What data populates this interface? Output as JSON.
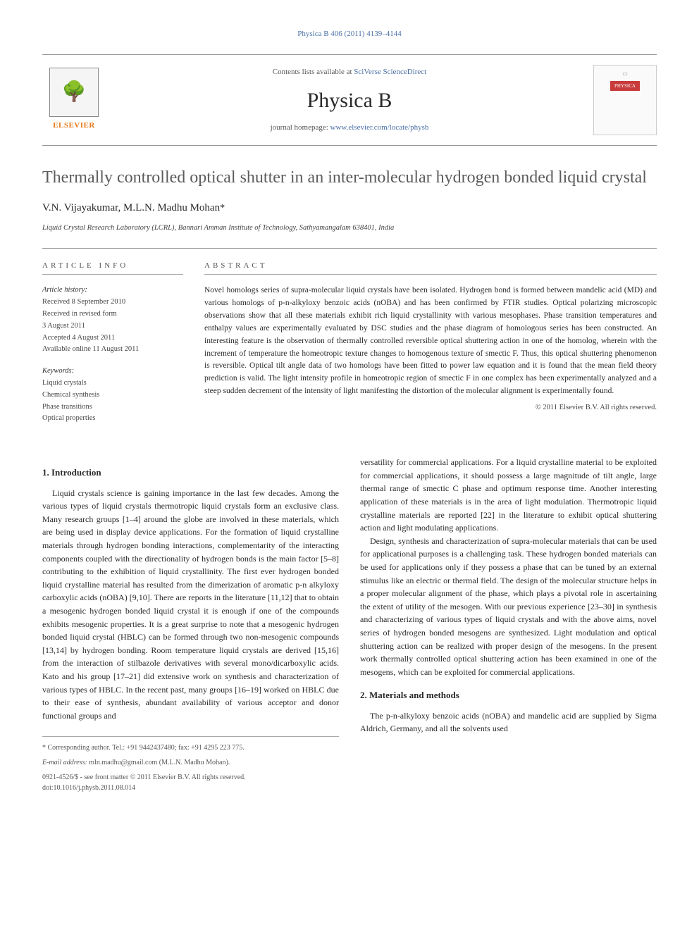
{
  "journal_ref": "Physica B 406 (2011) 4139–4144",
  "header": {
    "contents_prefix": "Contents lists available at ",
    "contents_link": "SciVerse ScienceDirect",
    "journal_name": "Physica B",
    "homepage_prefix": "journal homepage: ",
    "homepage_url": "www.elsevier.com/locate/physb",
    "elsevier_label": "ELSEVIER",
    "cover_badge": "PHYSICA"
  },
  "title": "Thermally controlled optical shutter in an inter-molecular hydrogen bonded liquid crystal",
  "authors": "V.N. Vijayakumar, M.L.N. Madhu Mohan",
  "author_mark": "*",
  "affiliation": "Liquid Crystal Research Laboratory (LCRL), Bannari Amman Institute of Technology, Sathyamangalam 638401, India",
  "article_info": {
    "heading": "ARTICLE INFO",
    "history_label": "Article history:",
    "history": [
      "Received 8 September 2010",
      "Received in revised form",
      "3 August 2011",
      "Accepted 4 August 2011",
      "Available online 11 August 2011"
    ],
    "keywords_label": "Keywords:",
    "keywords": [
      "Liquid crystals",
      "Chemical synthesis",
      "Phase transitions",
      "Optical properties"
    ]
  },
  "abstract": {
    "heading": "ABSTRACT",
    "text": "Novel homologs series of supra-molecular liquid crystals have been isolated. Hydrogen bond is formed between mandelic acid (MD) and various homologs of p-n-alkyloxy benzoic acids (nOBA) and has been confirmed by FTIR studies. Optical polarizing microscopic observations show that all these materials exhibit rich liquid crystallinity with various mesophases. Phase transition temperatures and enthalpy values are experimentally evaluated by DSC studies and the phase diagram of homologous series has been constructed. An interesting feature is the observation of thermally controlled reversible optical shuttering action in one of the homolog, wherein with the increment of temperature the homeotropic texture changes to homogenous texture of smectic F. Thus, this optical shuttering phenomenon is reversible. Optical tilt angle data of two homologs have been fitted to power law equation and it is found that the mean field theory prediction is valid. The light intensity profile in homeotropic region of smectic F in one complex has been experimentally analyzed and a steep sudden decrement of the intensity of light manifesting the distortion of the molecular alignment is experimentally found.",
    "copyright": "© 2011 Elsevier B.V. All rights reserved."
  },
  "sections": {
    "intro_heading": "1. Introduction",
    "intro_p1": "Liquid crystals science is gaining importance in the last few decades. Among the various types of liquid crystals thermotropic liquid crystals form an exclusive class. Many research groups [1–4] around the globe are involved in these materials, which are being used in display device applications. For the formation of liquid crystalline materials through hydrogen bonding interactions, complementarity of the interacting components coupled with the directionality of hydrogen bonds is the main factor [5–8] contributing to the exhibition of liquid crystallinity. The first ever hydrogen bonded liquid crystalline material has resulted from the dimerization of aromatic p-n alkyloxy carboxylic acids (nOBA) [9,10]. There are reports in the literature [11,12] that to obtain a mesogenic hydrogen bonded liquid crystal it is enough if one of the compounds exhibits mesogenic properties. It is a great surprise to note that a mesogenic hydrogen bonded liquid crystal (HBLC) can be formed through two non-mesogenic compounds [13,14] by hydrogen bonding. Room temperature liquid crystals are derived [15,16] from the interaction of stilbazole derivatives with several mono/dicarboxylic acids. Kato and his group [17–21] did extensive work on synthesis and characterization of various types of HBLC. In the recent past, many groups [16–19] worked on HBLC due to their ease of synthesis, abundant availability of various acceptor and donor functional groups and",
    "intro_p2": "versatility for commercial applications. For a liquid crystalline material to be exploited for commercial applications, it should possess a large magnitude of tilt angle, large thermal range of smectic C phase and optimum response time. Another interesting application of these materials is in the area of light modulation. Thermotropic liquid crystalline materials are reported [22] in the literature to exhibit optical shuttering action and light modulating applications.",
    "intro_p3": "Design, synthesis and characterization of supra-molecular materials that can be used for applicational purposes is a challenging task. These hydrogen bonded materials can be used for applications only if they possess a phase that can be tuned by an external stimulus like an electric or thermal field. The design of the molecular structure helps in a proper molecular alignment of the phase, which plays a pivotal role in ascertaining the extent of utility of the mesogen. With our previous experience [23–30] in synthesis and characterizing of various types of liquid crystals and with the above aims, novel series of hydrogen bonded mesogens are synthesized. Light modulation and optical shuttering action can be realized with proper design of the mesogens. In the present work thermally controlled optical shuttering action has been examined in one of the mesogens, which can be exploited for commercial applications.",
    "methods_heading": "2. Materials and methods",
    "methods_p1": "The p-n-alkyloxy benzoic acids (nOBA) and mandelic acid are supplied by Sigma Aldrich, Germany, and all the solvents used"
  },
  "footer": {
    "corresponding": "* Corresponding author. Tel.: +91 9442437480; fax: +91 4295 223 775.",
    "email_label": "E-mail address:",
    "email": "mln.madhu@gmail.com (M.L.N. Madhu Mohan).",
    "issn": "0921-4526/$ - see front matter © 2011 Elsevier B.V. All rights reserved.",
    "doi": "doi:10.1016/j.physb.2011.08.014"
  },
  "colors": {
    "link": "#4a6fa5",
    "elsevier_orange": "#e67817",
    "cover_red": "#c93a3a",
    "text": "#2a2a2a",
    "muted": "#555555",
    "rule": "#999999"
  }
}
